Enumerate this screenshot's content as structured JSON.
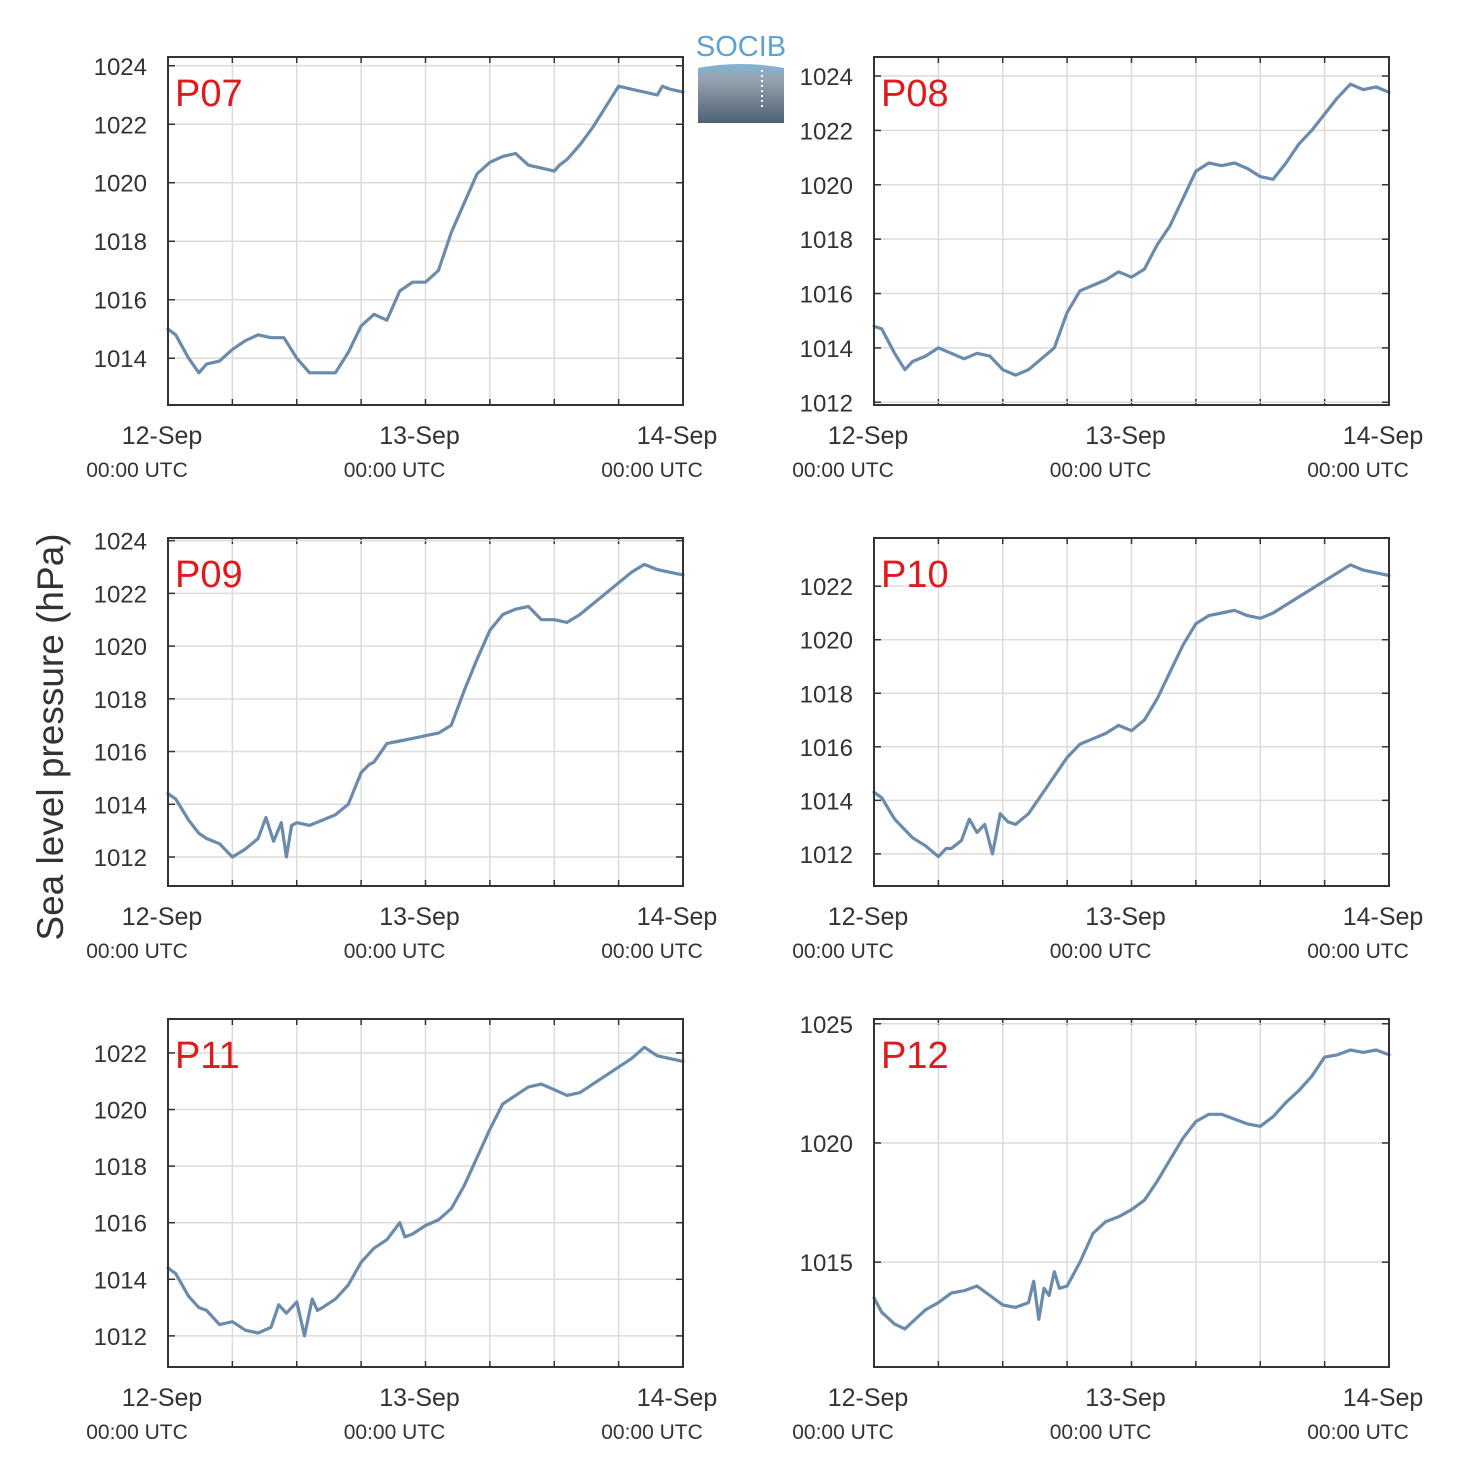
{
  "figure": {
    "ylabel": "Sea level pressure (hPa)",
    "logo_text": "SOCIB",
    "line_color": "#6b8bad",
    "panel_label_color": "#e0191e",
    "x_ticks": [
      {
        "day": 0,
        "date": "12-Sep",
        "time": "00:00 UTC"
      },
      {
        "day": 1,
        "date": "13-Sep",
        "time": "00:00 UTC"
      },
      {
        "day": 2,
        "date": "14-Sep",
        "time": "00:00 UTC"
      }
    ]
  },
  "chart_data": [
    {
      "type": "line",
      "title": "P07",
      "xlim": [
        0,
        2
      ],
      "ylim": [
        1012.4,
        1024.3
      ],
      "yticks": [
        1014,
        1016,
        1018,
        1020,
        1022,
        1024
      ],
      "grid": true,
      "series": [
        {
          "x": [
            0,
            0.03,
            0.08,
            0.12,
            0.15,
            0.2,
            0.25,
            0.3,
            0.35,
            0.4,
            0.45,
            0.5,
            0.52,
            0.55,
            0.6,
            0.65,
            0.7,
            0.75,
            0.8,
            0.85,
            0.9,
            0.95,
            1.0,
            1.05,
            1.1,
            1.15,
            1.2,
            1.25,
            1.3,
            1.35,
            1.4,
            1.45,
            1.5,
            1.52,
            1.55,
            1.6,
            1.65,
            1.7,
            1.75,
            1.8,
            1.85,
            1.9,
            1.92,
            1.95,
            2.0
          ],
          "y": [
            1015.0,
            1014.8,
            1014.0,
            1013.5,
            1013.8,
            1013.9,
            1014.3,
            1014.6,
            1014.8,
            1014.7,
            1014.7,
            1014.0,
            1013.8,
            1013.5,
            1013.5,
            1013.5,
            1014.2,
            1015.1,
            1015.5,
            1015.3,
            1016.3,
            1016.6,
            1016.6,
            1017.0,
            1018.3,
            1019.3,
            1020.3,
            1020.7,
            1020.9,
            1021.0,
            1020.6,
            1020.5,
            1020.4,
            1020.6,
            1020.8,
            1021.3,
            1021.9,
            1022.6,
            1023.3,
            1023.2,
            1023.1,
            1023.0,
            1023.3,
            1023.2,
            1023.1
          ]
        }
      ]
    },
    {
      "type": "line",
      "title": "P08",
      "xlim": [
        0,
        2
      ],
      "ylim": [
        1011.9,
        1024.7
      ],
      "yticks": [
        1012,
        1014,
        1016,
        1018,
        1020,
        1022,
        1024
      ],
      "grid": true,
      "series": [
        {
          "x": [
            0,
            0.03,
            0.08,
            0.12,
            0.15,
            0.2,
            0.25,
            0.3,
            0.35,
            0.4,
            0.45,
            0.5,
            0.55,
            0.6,
            0.65,
            0.7,
            0.75,
            0.8,
            0.85,
            0.9,
            0.95,
            1.0,
            1.05,
            1.1,
            1.15,
            1.2,
            1.25,
            1.3,
            1.35,
            1.4,
            1.45,
            1.5,
            1.55,
            1.6,
            1.65,
            1.7,
            1.75,
            1.8,
            1.85,
            1.9,
            1.95,
            2.0
          ],
          "y": [
            1014.8,
            1014.7,
            1013.8,
            1013.2,
            1013.5,
            1013.7,
            1014.0,
            1013.8,
            1013.6,
            1013.8,
            1013.7,
            1013.2,
            1013.0,
            1013.2,
            1013.6,
            1014.0,
            1015.3,
            1016.1,
            1016.3,
            1016.5,
            1016.8,
            1016.6,
            1016.9,
            1017.8,
            1018.5,
            1019.5,
            1020.5,
            1020.8,
            1020.7,
            1020.8,
            1020.6,
            1020.3,
            1020.2,
            1020.8,
            1021.5,
            1022.0,
            1022.6,
            1023.2,
            1023.7,
            1023.5,
            1023.6,
            1023.4
          ]
        }
      ]
    },
    {
      "type": "line",
      "title": "P09",
      "xlim": [
        0,
        2
      ],
      "ylim": [
        1010.9,
        1024.1
      ],
      "yticks": [
        1012,
        1014,
        1016,
        1018,
        1020,
        1022,
        1024
      ],
      "grid": true,
      "series": [
        {
          "x": [
            0,
            0.03,
            0.08,
            0.12,
            0.15,
            0.2,
            0.25,
            0.3,
            0.35,
            0.38,
            0.41,
            0.44,
            0.46,
            0.48,
            0.5,
            0.55,
            0.6,
            0.65,
            0.7,
            0.75,
            0.78,
            0.8,
            0.85,
            0.9,
            0.95,
            1.0,
            1.05,
            1.1,
            1.15,
            1.2,
            1.25,
            1.3,
            1.35,
            1.4,
            1.45,
            1.5,
            1.55,
            1.6,
            1.65,
            1.7,
            1.75,
            1.8,
            1.85,
            1.9,
            1.95,
            2.0
          ],
          "y": [
            1014.4,
            1014.2,
            1013.4,
            1012.9,
            1012.7,
            1012.5,
            1012.0,
            1012.3,
            1012.7,
            1013.5,
            1012.6,
            1013.3,
            1012.0,
            1013.2,
            1013.3,
            1013.2,
            1013.4,
            1013.6,
            1014.0,
            1015.2,
            1015.5,
            1015.6,
            1016.3,
            1016.4,
            1016.5,
            1016.6,
            1016.7,
            1017.0,
            1018.3,
            1019.5,
            1020.6,
            1021.2,
            1021.4,
            1021.5,
            1021.0,
            1021.0,
            1020.9,
            1021.2,
            1021.6,
            1022.0,
            1022.4,
            1022.8,
            1023.1,
            1022.9,
            1022.8,
            1022.7
          ]
        }
      ]
    },
    {
      "type": "line",
      "title": "P10",
      "xlim": [
        0,
        2
      ],
      "ylim": [
        1010.8,
        1023.8
      ],
      "yticks": [
        1012,
        1014,
        1016,
        1018,
        1020,
        1022
      ],
      "grid": true,
      "series": [
        {
          "x": [
            0,
            0.03,
            0.08,
            0.12,
            0.15,
            0.2,
            0.25,
            0.28,
            0.3,
            0.34,
            0.37,
            0.4,
            0.43,
            0.46,
            0.49,
            0.52,
            0.55,
            0.6,
            0.65,
            0.7,
            0.75,
            0.8,
            0.85,
            0.9,
            0.95,
            1.0,
            1.05,
            1.1,
            1.15,
            1.2,
            1.25,
            1.3,
            1.35,
            1.4,
            1.45,
            1.5,
            1.55,
            1.6,
            1.65,
            1.7,
            1.75,
            1.8,
            1.85,
            1.9,
            1.95,
            2.0
          ],
          "y": [
            1014.3,
            1014.1,
            1013.3,
            1012.9,
            1012.6,
            1012.3,
            1011.9,
            1012.2,
            1012.2,
            1012.5,
            1013.3,
            1012.8,
            1013.1,
            1012.0,
            1013.5,
            1013.2,
            1013.1,
            1013.5,
            1014.2,
            1014.9,
            1015.6,
            1016.1,
            1016.3,
            1016.5,
            1016.8,
            1016.6,
            1017.0,
            1017.8,
            1018.8,
            1019.8,
            1020.6,
            1020.9,
            1021.0,
            1021.1,
            1020.9,
            1020.8,
            1021.0,
            1021.3,
            1021.6,
            1021.9,
            1022.2,
            1022.5,
            1022.8,
            1022.6,
            1022.5,
            1022.4
          ]
        }
      ]
    },
    {
      "type": "line",
      "title": "P11",
      "xlim": [
        0,
        2
      ],
      "ylim": [
        1010.9,
        1023.2
      ],
      "yticks": [
        1012,
        1014,
        1016,
        1018,
        1020,
        1022
      ],
      "grid": true,
      "series": [
        {
          "x": [
            0,
            0.03,
            0.08,
            0.12,
            0.15,
            0.2,
            0.25,
            0.3,
            0.35,
            0.4,
            0.43,
            0.46,
            0.5,
            0.53,
            0.56,
            0.58,
            0.6,
            0.65,
            0.7,
            0.75,
            0.8,
            0.85,
            0.9,
            0.92,
            0.95,
            1.0,
            1.05,
            1.1,
            1.15,
            1.2,
            1.25,
            1.3,
            1.35,
            1.4,
            1.45,
            1.5,
            1.55,
            1.6,
            1.65,
            1.7,
            1.75,
            1.8,
            1.85,
            1.9,
            1.95,
            2.0
          ],
          "y": [
            1014.4,
            1014.2,
            1013.4,
            1013.0,
            1012.9,
            1012.4,
            1012.5,
            1012.2,
            1012.1,
            1012.3,
            1013.1,
            1012.8,
            1013.2,
            1012.0,
            1013.3,
            1012.9,
            1013.0,
            1013.3,
            1013.8,
            1014.6,
            1015.1,
            1015.4,
            1016.0,
            1015.5,
            1015.6,
            1015.9,
            1016.1,
            1016.5,
            1017.3,
            1018.3,
            1019.3,
            1020.2,
            1020.5,
            1020.8,
            1020.9,
            1020.7,
            1020.5,
            1020.6,
            1020.9,
            1021.2,
            1021.5,
            1021.8,
            1022.2,
            1021.9,
            1021.8,
            1021.7
          ]
        }
      ]
    },
    {
      "type": "line",
      "title": "P12",
      "xlim": [
        0,
        2
      ],
      "ylim": [
        1010.6,
        1025.2
      ],
      "yticks": [
        1015,
        1020,
        1025
      ],
      "grid": true,
      "series": [
        {
          "x": [
            0,
            0.03,
            0.08,
            0.12,
            0.15,
            0.2,
            0.25,
            0.3,
            0.35,
            0.4,
            0.45,
            0.5,
            0.55,
            0.6,
            0.62,
            0.64,
            0.66,
            0.68,
            0.7,
            0.72,
            0.75,
            0.8,
            0.85,
            0.9,
            0.95,
            1.0,
            1.05,
            1.1,
            1.15,
            1.2,
            1.25,
            1.3,
            1.35,
            1.4,
            1.45,
            1.5,
            1.55,
            1.6,
            1.65,
            1.7,
            1.75,
            1.8,
            1.85,
            1.9,
            1.95,
            2.0
          ],
          "y": [
            1013.5,
            1012.9,
            1012.4,
            1012.2,
            1012.5,
            1013.0,
            1013.3,
            1013.7,
            1013.8,
            1014.0,
            1013.6,
            1013.2,
            1013.1,
            1013.3,
            1014.2,
            1012.6,
            1013.9,
            1013.6,
            1014.6,
            1013.9,
            1014.0,
            1015.0,
            1016.2,
            1016.7,
            1016.9,
            1017.2,
            1017.6,
            1018.4,
            1019.3,
            1020.2,
            1020.9,
            1021.2,
            1021.2,
            1021.0,
            1020.8,
            1020.7,
            1021.1,
            1021.7,
            1022.2,
            1022.8,
            1023.6,
            1023.7,
            1023.9,
            1023.8,
            1023.9,
            1023.7
          ]
        }
      ]
    }
  ]
}
